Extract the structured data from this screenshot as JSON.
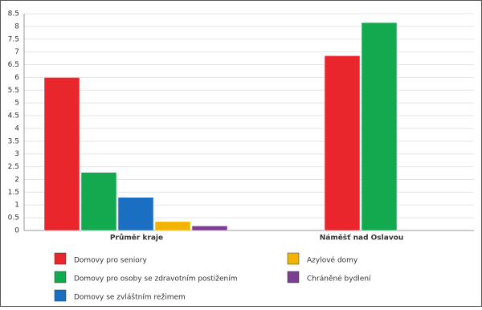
{
  "chart_data": {
    "type": "bar",
    "categories": [
      "Průměr kraje",
      "Náměšť nad Oslavou"
    ],
    "series": [
      {
        "name": "Domovy pro seniory",
        "color": "#e8262b",
        "values": [
          6.0,
          6.85
        ]
      },
      {
        "name": "Domovy pro osoby se zdravotním postižením",
        "color": "#12a94f",
        "values": [
          2.28,
          8.15
        ]
      },
      {
        "name": "Domovy se zvláštním režimem",
        "color": "#1a6fc2",
        "values": [
          1.3,
          null
        ]
      },
      {
        "name": "Azylové domy",
        "color": "#f2b400",
        "values": [
          0.35,
          null
        ]
      },
      {
        "name": "Chráněné bydlení",
        "color": "#7b3f92",
        "values": [
          0.18,
          null
        ]
      }
    ],
    "ylim": [
      0,
      8.5
    ],
    "yticks": [
      0,
      0.5,
      1,
      1.5,
      2,
      2.5,
      3,
      3.5,
      4,
      4.5,
      5,
      5.5,
      6,
      6.5,
      7,
      7.5,
      8,
      8.5
    ],
    "grid": true
  }
}
